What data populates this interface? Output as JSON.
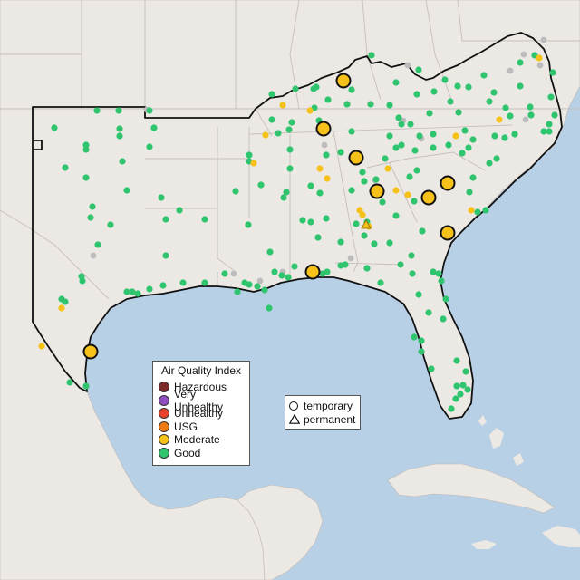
{
  "legend": {
    "title": "Air Quality Index",
    "items": [
      {
        "label": "Hazardous",
        "color": "#7e2a2a"
      },
      {
        "label": "Very Unhealthy",
        "color": "#8f4fbf"
      },
      {
        "label": "Unhealthy",
        "color": "#e8432a"
      },
      {
        "label": "USG",
        "color": "#ee7a12"
      },
      {
        "label": "Moderate",
        "color": "#f6c21a"
      },
      {
        "label": "Good",
        "color": "#2fc46e"
      }
    ]
  },
  "shape_legend": {
    "temporary": "temporary",
    "permanent": "permanent"
  },
  "colors": {
    "land": "#ece8e4",
    "water": "#b8d0e6",
    "good": "#2fc46e",
    "moderate": "#f6c21a",
    "no_data": "#bcbcbc",
    "region_outline": "#111111"
  }
}
